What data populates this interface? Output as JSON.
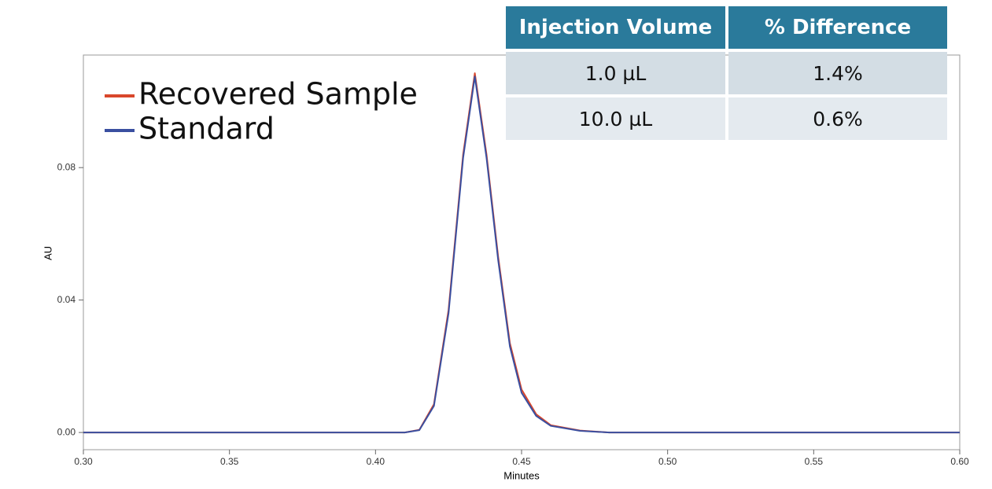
{
  "chart_data": {
    "type": "line",
    "x_label": "Minutes",
    "y_label": "AU",
    "x": [
      0.3,
      0.41,
      0.415,
      0.42,
      0.425,
      0.43,
      0.434,
      0.438,
      0.442,
      0.446,
      0.45,
      0.455,
      0.46,
      0.47,
      0.48,
      0.6
    ],
    "series": [
      {
        "name": "Recovered Sample",
        "color": "#d9472b",
        "values": [
          0,
          0,
          0.0008,
          0.0085,
          0.037,
          0.084,
          0.1085,
          0.084,
          0.053,
          0.027,
          0.013,
          0.0055,
          0.0022,
          0.0006,
          0,
          0
        ]
      },
      {
        "name": "Standard",
        "color": "#3a4fa0",
        "values": [
          0,
          0,
          0.0007,
          0.008,
          0.036,
          0.083,
          0.1075,
          0.083,
          0.052,
          0.026,
          0.012,
          0.005,
          0.002,
          0.0005,
          0,
          0
        ]
      }
    ],
    "xlim": [
      0.3,
      0.6
    ],
    "xticks": [
      {
        "value": 0.3,
        "label": "0.30"
      },
      {
        "value": 0.35,
        "label": "0.35"
      },
      {
        "value": 0.4,
        "label": "0.40"
      },
      {
        "value": 0.45,
        "label": "0.45"
      },
      {
        "value": 0.5,
        "label": "0.50"
      },
      {
        "value": 0.55,
        "label": "0.55"
      },
      {
        "value": 0.6,
        "label": "0.60"
      }
    ],
    "ylim": [
      -0.0052,
      0.114
    ],
    "yticks": [
      {
        "value": 0,
        "label": "0.00"
      },
      {
        "value": 0.04,
        "label": "0.04"
      },
      {
        "value": 0.08,
        "label": "0.08"
      }
    ],
    "legend": "upper left"
  },
  "table": {
    "header": [
      "Injection Volume",
      "% Difference"
    ],
    "rows": [
      [
        "1.0 µL",
        "1.4%"
      ],
      [
        "10.0 µL",
        "0.6%"
      ]
    ]
  }
}
